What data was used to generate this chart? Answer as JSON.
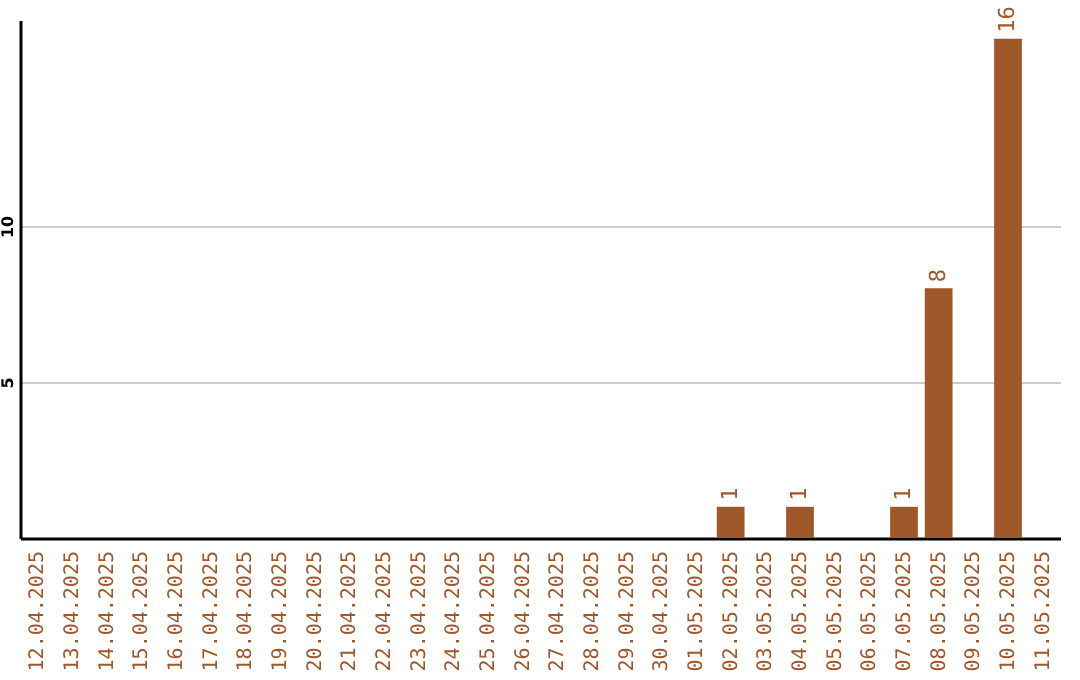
{
  "chart_data": {
    "type": "bar",
    "categories": [
      "12.04.2025",
      "13.04.2025",
      "14.04.2025",
      "15.04.2025",
      "16.04.2025",
      "17.04.2025",
      "18.04.2025",
      "19.04.2025",
      "20.04.2025",
      "21.04.2025",
      "22.04.2025",
      "23.04.2025",
      "24.04.2025",
      "25.04.2025",
      "26.04.2025",
      "27.04.2025",
      "28.04.2025",
      "29.04.2025",
      "30.04.2025",
      "01.05.2025",
      "02.05.2025",
      "03.05.2025",
      "04.05.2025",
      "05.05.2025",
      "06.05.2025",
      "07.05.2025",
      "08.05.2025",
      "09.05.2025",
      "10.05.2025",
      "11.05.2025"
    ],
    "values": [
      0,
      0,
      0,
      0,
      0,
      0,
      0,
      0,
      0,
      0,
      0,
      0,
      0,
      0,
      0,
      0,
      0,
      0,
      0,
      0,
      1,
      0,
      1,
      0,
      0,
      1,
      8,
      0,
      16,
      0
    ],
    "value_labels": [
      null,
      null,
      null,
      null,
      null,
      null,
      null,
      null,
      null,
      null,
      null,
      null,
      null,
      null,
      null,
      null,
      null,
      null,
      null,
      null,
      "1",
      null,
      "1",
      null,
      null,
      "1",
      "8",
      null,
      "16",
      null
    ],
    "color": "#a0572a",
    "ylim": [
      0,
      16.6
    ],
    "yticks": [
      5,
      10
    ],
    "grid": "y"
  }
}
